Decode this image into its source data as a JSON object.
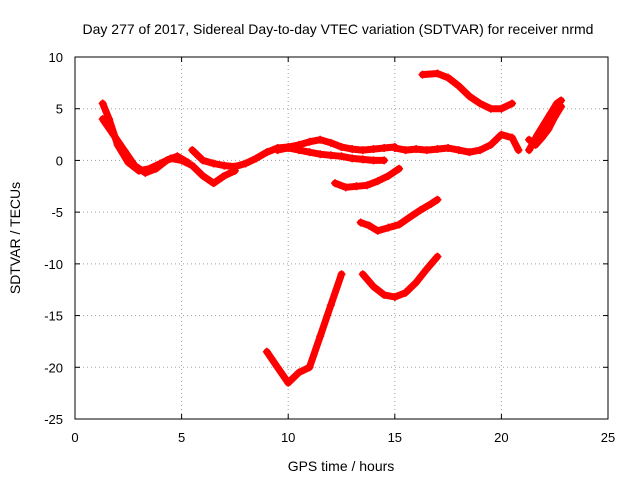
{
  "chart_data": {
    "type": "scatter",
    "title": "Day 277 of 2017, Sidereal Day-to-day VTEC variation (SDTVAR) for receiver nrmd",
    "xlabel": "GPS time / hours",
    "ylabel": "SDTVAR / TECUs",
    "xlim": [
      0,
      25
    ],
    "ylim": [
      -25,
      10
    ],
    "xticks": [
      "0",
      "5",
      "10",
      "15",
      "20",
      "25"
    ],
    "yticks": [
      "10",
      "5",
      "0",
      "-5",
      "-10",
      "-15",
      "-20",
      "-25"
    ],
    "grid": true,
    "marker": "plus",
    "color": "#ff0000",
    "series": [
      {
        "x": [
          1.3,
          1.6,
          2.0,
          2.5,
          3.0,
          3.5,
          4.0,
          4.5,
          5.0,
          5.5
        ],
        "y": [
          5.5,
          4.0,
          1.5,
          -0.2,
          -1.0,
          -0.8,
          -0.3,
          0.2,
          0.0,
          -0.5
        ]
      },
      {
        "x": [
          1.3,
          1.8,
          2.3,
          2.8,
          3.3,
          3.8,
          4.3,
          4.8,
          5.3
        ],
        "y": [
          4.0,
          2.5,
          1.0,
          -0.5,
          -1.2,
          -0.8,
          0.0,
          0.4,
          -0.2
        ]
      },
      {
        "x": [
          5.5,
          6.0,
          6.5,
          7.0,
          7.5,
          8.0,
          8.5,
          9.0,
          9.5,
          10.0,
          10.5,
          11.0,
          11.5,
          12.0,
          12.5,
          13.0,
          13.5,
          14.0,
          14.5,
          15.0
        ],
        "y": [
          1.0,
          0.0,
          -0.3,
          -0.5,
          -0.6,
          -0.3,
          0.2,
          0.8,
          1.2,
          1.3,
          1.5,
          1.8,
          2.0,
          1.7,
          1.3,
          1.1,
          1.0,
          1.1,
          1.2,
          1.3
        ]
      },
      {
        "x": [
          5.5,
          6.0,
          6.5,
          7.0,
          7.5
        ],
        "y": [
          -0.5,
          -1.5,
          -2.2,
          -1.5,
          -1.0
        ]
      },
      {
        "x": [
          9.5,
          10.0,
          10.5,
          11.0,
          11.5,
          12.0,
          12.5,
          13.0,
          13.5,
          14.0,
          14.5
        ],
        "y": [
          1.0,
          1.2,
          1.0,
          0.8,
          0.6,
          0.5,
          0.4,
          0.2,
          0.1,
          0.0,
          0.0
        ]
      },
      {
        "x": [
          15.0,
          15.5,
          16.0,
          16.5,
          17.0,
          17.5,
          18.0,
          18.5,
          19.0,
          19.5,
          20.0,
          20.5,
          20.8
        ],
        "y": [
          1.2,
          1.0,
          1.1,
          1.0,
          1.1,
          1.2,
          1.0,
          0.8,
          1.0,
          1.5,
          2.5,
          2.2,
          1.0
        ]
      },
      {
        "x": [
          16.3,
          17.0,
          17.5,
          18.0,
          18.5,
          19.0,
          19.5,
          20.0,
          20.5
        ],
        "y": [
          8.3,
          8.4,
          8.0,
          7.2,
          6.2,
          5.5,
          5.0,
          5.0,
          5.5
        ]
      },
      {
        "x": [
          21.3,
          21.7,
          22.0,
          22.3,
          22.6,
          22.8
        ],
        "y": [
          1.0,
          2.5,
          3.5,
          4.5,
          5.5,
          5.8
        ]
      },
      {
        "x": [
          21.3,
          21.6,
          21.9,
          22.2,
          22.5,
          22.8
        ],
        "y": [
          2.0,
          1.5,
          2.2,
          3.0,
          4.2,
          5.2
        ]
      },
      {
        "x": [
          12.2,
          12.7,
          13.2,
          13.7,
          14.2,
          14.7,
          15.2
        ],
        "y": [
          -2.2,
          -2.6,
          -2.5,
          -2.4,
          -2.0,
          -1.5,
          -0.8
        ]
      },
      {
        "x": [
          13.4,
          13.8,
          14.2,
          14.7,
          15.2,
          15.7,
          16.2,
          16.7,
          17.0
        ],
        "y": [
          -6.0,
          -6.3,
          -6.8,
          -6.5,
          -6.2,
          -5.5,
          -4.8,
          -4.2,
          -3.8
        ]
      },
      {
        "x": [
          13.5,
          14.0,
          14.5,
          15.0,
          15.5,
          16.0,
          16.5,
          17.0
        ],
        "y": [
          -11.0,
          -12.2,
          -13.0,
          -13.2,
          -12.8,
          -11.8,
          -10.5,
          -9.3
        ]
      },
      {
        "x": [
          9.0,
          9.5,
          10.0,
          10.5,
          11.0,
          11.5,
          12.0,
          12.5
        ],
        "y": [
          -18.5,
          -20.0,
          -21.5,
          -20.5,
          -20.0,
          -17.0,
          -14.0,
          -11.0
        ]
      }
    ]
  }
}
